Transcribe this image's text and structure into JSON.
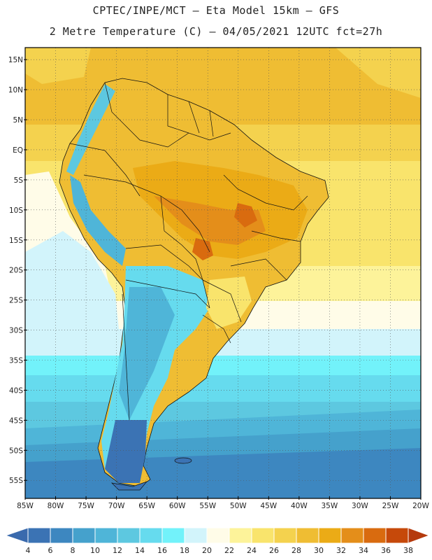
{
  "header": {
    "line1": "CPTEC/INPE/MCT –  Eta Model 15km – GFS",
    "line2": "2 Metre Temperature (C) – 04/05/2021 12UTC fct=27h"
  },
  "map": {
    "region": "South America",
    "variable": "2 Metre Temperature",
    "units": "C",
    "lon_range": [
      -85,
      -20
    ],
    "lat_range": [
      -58,
      17
    ],
    "lat_labels": [
      "15N",
      "10N",
      "5N",
      "EQ",
      "5S",
      "10S",
      "15S",
      "20S",
      "25S",
      "30S",
      "35S",
      "40S",
      "45S",
      "50S",
      "55S"
    ],
    "lat_values": [
      15,
      10,
      5,
      0,
      -5,
      -10,
      -15,
      -20,
      -25,
      -30,
      -35,
      -40,
      -45,
      -50,
      -55
    ],
    "lon_labels": [
      "85W",
      "80W",
      "75W",
      "70W",
      "65W",
      "60W",
      "55W",
      "50W",
      "45W",
      "40W",
      "35W",
      "30W",
      "25W",
      "20W"
    ],
    "lon_values": [
      -85,
      -80,
      -75,
      -70,
      -65,
      -60,
      -55,
      -50,
      -45,
      -40,
      -35,
      -30,
      -25,
      -20
    ]
  },
  "colorbar": {
    "labels": [
      "4",
      "6",
      "8",
      "10",
      "12",
      "14",
      "16",
      "18",
      "20",
      "22",
      "24",
      "26",
      "28",
      "30",
      "32",
      "34",
      "36",
      "38"
    ],
    "colors": [
      "#3b73b4",
      "#3d87c0",
      "#45a1cc",
      "#4fb5d8",
      "#5dc8e0",
      "#66dbee",
      "#72f2fa",
      "#d2f4fb",
      "#fffce8",
      "#fdf39a",
      "#f9e46c",
      "#f4d24e",
      "#efbd33",
      "#ebab16",
      "#e48e1a",
      "#d96b0f",
      "#c6490a"
    ],
    "low_end_color": "#3a6aad",
    "high_end_color": "#b53a0d"
  }
}
